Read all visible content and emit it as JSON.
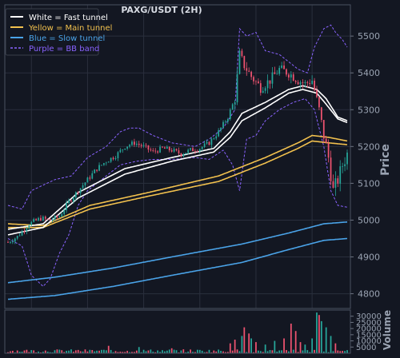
{
  "chart_data": {
    "type": "candlestick",
    "title": "PAXG/USDT (2H)",
    "price_panel": {
      "ylabel": "Price",
      "ylim": [
        4760,
        5585
      ],
      "yticks": [
        4800,
        4900,
        5000,
        5100,
        5200,
        5300,
        5400,
        5500
      ],
      "ytick_labels": [
        "4800",
        "4900",
        "5000",
        "5100",
        "5200",
        "5300",
        "5400",
        "5500"
      ],
      "grid": true
    },
    "volume_panel": {
      "ylabel": "Volume",
      "ylim": [
        0,
        35000
      ],
      "yticks": [
        5000,
        10000,
        15000,
        20000,
        25000,
        30000
      ],
      "ytick_labels": [
        "5000",
        "10000",
        "15000",
        "20000",
        "25000",
        "30000"
      ]
    },
    "legend": {
      "position": "top-left",
      "entries": [
        {
          "label": "White = Fast tunnel",
          "color": "#ffffff",
          "style": "solid"
        },
        {
          "label": "Yellow = Main tunnel",
          "color": "#f2c14e",
          "style": "solid"
        },
        {
          "label": "Blue = Slow tunnel",
          "color": "#4aa3e8",
          "style": "solid"
        },
        {
          "label": "Purple = BB band",
          "color": "#8a63ff",
          "style": "dashed"
        }
      ]
    },
    "colors": {
      "up": "#26a69a",
      "down": "#ef5370",
      "background": "#131722",
      "grid": "#2a2f3d"
    },
    "price_path": [
      [
        0,
        4940
      ],
      [
        4,
        4955
      ],
      [
        9,
        4990
      ],
      [
        14,
        5005
      ],
      [
        18,
        5000
      ],
      [
        22,
        5010
      ],
      [
        26,
        5050
      ],
      [
        30,
        5080
      ],
      [
        34,
        5110
      ],
      [
        38,
        5140
      ],
      [
        42,
        5160
      ],
      [
        46,
        5175
      ],
      [
        50,
        5200
      ],
      [
        54,
        5210
      ],
      [
        58,
        5200
      ],
      [
        62,
        5185
      ],
      [
        66,
        5195
      ],
      [
        70,
        5190
      ],
      [
        74,
        5180
      ],
      [
        78,
        5190
      ],
      [
        82,
        5195
      ],
      [
        86,
        5210
      ],
      [
        90,
        5240
      ],
      [
        94,
        5280
      ],
      [
        97,
        5330
      ],
      [
        99,
        5450
      ],
      [
        101,
        5420
      ],
      [
        104,
        5390
      ],
      [
        108,
        5360
      ],
      [
        112,
        5380
      ],
      [
        116,
        5410
      ],
      [
        120,
        5400
      ],
      [
        124,
        5380
      ],
      [
        127,
        5370
      ],
      [
        130,
        5380
      ],
      [
        133,
        5300
      ],
      [
        135,
        5230
      ],
      [
        137,
        5170
      ],
      [
        139,
        5080
      ],
      [
        141,
        5110
      ],
      [
        143,
        5150
      ],
      [
        145,
        5180
      ]
    ],
    "fast_tunnel": {
      "upper": [
        [
          0,
          4975
        ],
        [
          15,
          4990
        ],
        [
          30,
          5075
        ],
        [
          50,
          5140
        ],
        [
          70,
          5170
        ],
        [
          88,
          5195
        ],
        [
          95,
          5240
        ],
        [
          100,
          5290
        ],
        [
          110,
          5320
        ],
        [
          120,
          5355
        ],
        [
          126,
          5365
        ],
        [
          132,
          5355
        ],
        [
          136,
          5330
        ],
        [
          141,
          5280
        ],
        [
          145,
          5270
        ]
      ],
      "lower": [
        [
          0,
          4960
        ],
        [
          15,
          4980
        ],
        [
          30,
          5060
        ],
        [
          50,
          5125
        ],
        [
          70,
          5160
        ],
        [
          88,
          5185
        ],
        [
          95,
          5225
        ],
        [
          100,
          5270
        ],
        [
          110,
          5305
        ],
        [
          120,
          5345
        ],
        [
          126,
          5355
        ],
        [
          132,
          5345
        ],
        [
          136,
          5315
        ],
        [
          141,
          5275
        ],
        [
          145,
          5265
        ]
      ]
    },
    "main_tunnel": {
      "upper": [
        [
          0,
          4990
        ],
        [
          15,
          4985
        ],
        [
          35,
          5040
        ],
        [
          60,
          5075
        ],
        [
          90,
          5120
        ],
        [
          110,
          5170
        ],
        [
          124,
          5210
        ],
        [
          130,
          5230
        ],
        [
          137,
          5225
        ],
        [
          145,
          5215
        ]
      ],
      "lower": [
        [
          0,
          4980
        ],
        [
          15,
          4980
        ],
        [
          35,
          5030
        ],
        [
          60,
          5065
        ],
        [
          90,
          5105
        ],
        [
          110,
          5155
        ],
        [
          124,
          5195
        ],
        [
          130,
          5215
        ],
        [
          137,
          5210
        ],
        [
          145,
          5205
        ]
      ]
    },
    "slow_tunnel": {
      "upper": [
        [
          0,
          4830
        ],
        [
          20,
          4845
        ],
        [
          45,
          4870
        ],
        [
          70,
          4900
        ],
        [
          100,
          4935
        ],
        [
          120,
          4965
        ],
        [
          135,
          4990
        ],
        [
          145,
          4995
        ]
      ],
      "lower": [
        [
          0,
          4785
        ],
        [
          20,
          4795
        ],
        [
          45,
          4820
        ],
        [
          70,
          4850
        ],
        [
          100,
          4885
        ],
        [
          120,
          4920
        ],
        [
          135,
          4945
        ],
        [
          145,
          4950
        ]
      ]
    },
    "bb_band": {
      "upper": [
        [
          0,
          5040
        ],
        [
          6,
          5030
        ],
        [
          10,
          5080
        ],
        [
          20,
          5110
        ],
        [
          27,
          5120
        ],
        [
          34,
          5170
        ],
        [
          42,
          5200
        ],
        [
          48,
          5240
        ],
        [
          52,
          5250
        ],
        [
          56,
          5250
        ],
        [
          62,
          5230
        ],
        [
          70,
          5210
        ],
        [
          80,
          5200
        ],
        [
          86,
          5220
        ],
        [
          92,
          5250
        ],
        [
          97,
          5300
        ],
        [
          99,
          5520
        ],
        [
          102,
          5500
        ],
        [
          106,
          5510
        ],
        [
          110,
          5460
        ],
        [
          116,
          5450
        ],
        [
          120,
          5430
        ],
        [
          124,
          5410
        ],
        [
          128,
          5400
        ],
        [
          131,
          5470
        ],
        [
          135,
          5520
        ],
        [
          138,
          5530
        ],
        [
          140,
          5510
        ],
        [
          143,
          5490
        ],
        [
          145,
          5470
        ]
      ],
      "lower": [
        [
          0,
          4950
        ],
        [
          6,
          4930
        ],
        [
          10,
          4850
        ],
        [
          15,
          4820
        ],
        [
          18,
          4840
        ],
        [
          22,
          4910
        ],
        [
          26,
          4960
        ],
        [
          30,
          5040
        ],
        [
          34,
          5080
        ],
        [
          38,
          5100
        ],
        [
          42,
          5120
        ],
        [
          48,
          5150
        ],
        [
          55,
          5160
        ],
        [
          62,
          5165
        ],
        [
          70,
          5165
        ],
        [
          80,
          5170
        ],
        [
          86,
          5165
        ],
        [
          92,
          5190
        ],
        [
          96,
          5150
        ],
        [
          99,
          5080
        ],
        [
          102,
          5220
        ],
        [
          106,
          5230
        ],
        [
          110,
          5270
        ],
        [
          116,
          5300
        ],
        [
          122,
          5320
        ],
        [
          127,
          5330
        ],
        [
          131,
          5300
        ],
        [
          135,
          5200
        ],
        [
          138,
          5080
        ],
        [
          141,
          5040
        ],
        [
          145,
          5035
        ]
      ]
    },
    "volume_spikes": [
      [
        43,
        6000
      ],
      [
        56,
        5000
      ],
      [
        70,
        4000
      ],
      [
        95,
        8000
      ],
      [
        97,
        11000
      ],
      [
        100,
        14000
      ],
      [
        101,
        21000
      ],
      [
        103,
        16000
      ],
      [
        104,
        12000
      ],
      [
        106,
        9000
      ],
      [
        110,
        7000
      ],
      [
        114,
        10000
      ],
      [
        118,
        12000
      ],
      [
        121,
        24000
      ],
      [
        123,
        18000
      ],
      [
        125,
        9000
      ],
      [
        127,
        7000
      ],
      [
        130,
        12000
      ],
      [
        132,
        33000
      ],
      [
        133,
        31000
      ],
      [
        134,
        26000
      ],
      [
        136,
        21000
      ],
      [
        138,
        14000
      ],
      [
        140,
        8000
      ]
    ]
  }
}
